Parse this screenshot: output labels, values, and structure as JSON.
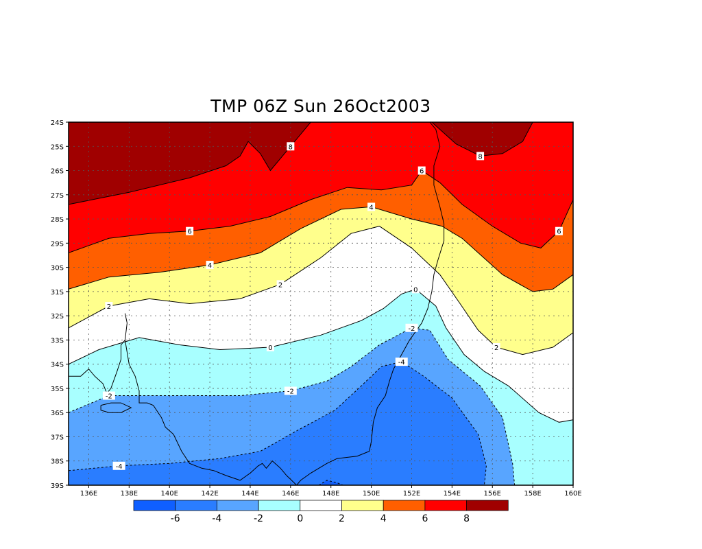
{
  "title": "TMP 06Z Sun 26Oct2003",
  "lat_labels": [
    "24S",
    "25S",
    "26S",
    "27S",
    "28S",
    "29S",
    "30S",
    "31S",
    "32S",
    "33S",
    "34S",
    "35S",
    "36S",
    "37S",
    "38S",
    "39S"
  ],
  "lon_labels": [
    "136E",
    "138E",
    "140E",
    "142E",
    "144E",
    "146E",
    "148E",
    "150E",
    "152E",
    "154E",
    "156E",
    "158E",
    "160E"
  ],
  "contour_labels": [
    "8",
    "8",
    "6",
    "6",
    "6",
    "4",
    "4",
    "2",
    "2",
    "2",
    "0",
    "0",
    "-2",
    "-2",
    "-2",
    "-4",
    "-4"
  ],
  "colorbar": {
    "colors": [
      "#0f5fff",
      "#2a7dff",
      "#58a5ff",
      "#a8ffff",
      "#ffffff",
      "#ffff8c",
      "#ff5f00",
      "#ff0000",
      "#a00000"
    ],
    "labels": [
      "-6",
      "-4",
      "-2",
      "0",
      "2",
      "4",
      "6",
      "8"
    ]
  },
  "chart_data": {
    "type": "heatmap",
    "title": "TMP 06Z Sun 26Oct2003",
    "variable": "TMP",
    "x_range": [
      135,
      160
    ],
    "y_range": [
      -39,
      -24
    ],
    "levels": [
      -6,
      -4,
      -2,
      0,
      2,
      4,
      6,
      8
    ],
    "contours": [
      {
        "level": 8,
        "points": [
          [
            135,
            -27.4
          ],
          [
            138,
            -26.9
          ],
          [
            141,
            -26.3
          ],
          [
            142.8,
            -25.8
          ],
          [
            143.5,
            -25.4
          ],
          [
            143.9,
            -24.8
          ],
          [
            144.5,
            -25.3
          ],
          [
            145,
            -26
          ],
          [
            146,
            -25
          ],
          [
            146.8,
            -24.2
          ],
          [
            147,
            -24
          ]
        ],
        "second_segment": [
          [
            153,
            -24
          ],
          [
            154.2,
            -24.9
          ],
          [
            155.4,
            -25.4
          ],
          [
            156.5,
            -25.3
          ],
          [
            157.5,
            -24.8
          ],
          [
            158,
            -24
          ]
        ]
      },
      {
        "level": 6,
        "points": [
          [
            135,
            -29.4
          ],
          [
            137,
            -28.8
          ],
          [
            139,
            -28.6
          ],
          [
            141,
            -28.5
          ],
          [
            143,
            -28.3
          ],
          [
            145,
            -27.9
          ],
          [
            147,
            -27.2
          ],
          [
            148.8,
            -26.7
          ],
          [
            150.5,
            -26.8
          ],
          [
            152,
            -26.6
          ],
          [
            152.5,
            -26
          ],
          [
            153.4,
            -26.5
          ],
          [
            154.5,
            -27.4
          ],
          [
            156,
            -28.3
          ],
          [
            157.4,
            -29
          ],
          [
            158.4,
            -29.2
          ],
          [
            159.3,
            -28.5
          ],
          [
            160,
            -27.2
          ]
        ]
      },
      {
        "level": 4,
        "points": [
          [
            135,
            -30.9
          ],
          [
            137,
            -30.4
          ],
          [
            139.5,
            -30.2
          ],
          [
            142,
            -29.9
          ],
          [
            144.5,
            -29.4
          ],
          [
            146.5,
            -28.4
          ],
          [
            148.5,
            -27.6
          ],
          [
            150,
            -27.5
          ],
          [
            152,
            -28
          ],
          [
            153.5,
            -28.3
          ],
          [
            154.5,
            -28.8
          ],
          [
            156.5,
            -30.3
          ],
          [
            158,
            -31
          ],
          [
            159,
            -30.9
          ],
          [
            160,
            -30.3
          ]
        ]
      },
      {
        "level": 2,
        "points": [
          [
            135,
            -32.5
          ],
          [
            137,
            -31.6
          ],
          [
            139,
            -31.3
          ],
          [
            141,
            -31.5
          ],
          [
            143.5,
            -31.3
          ],
          [
            145.5,
            -30.7
          ],
          [
            147.5,
            -29.6
          ],
          [
            149,
            -28.6
          ],
          [
            150.4,
            -28.3
          ],
          [
            152,
            -29.2
          ],
          [
            153.4,
            -30.3
          ],
          [
            154.4,
            -31.5
          ],
          [
            155.3,
            -32.6
          ],
          [
            156.2,
            -33.3
          ],
          [
            157.5,
            -33.6
          ],
          [
            159,
            -33.3
          ],
          [
            160,
            -32.7
          ]
        ]
      },
      {
        "level": 0,
        "points": [
          [
            135,
            -34
          ],
          [
            136.5,
            -33.4
          ],
          [
            138.5,
            -32.9
          ],
          [
            140.5,
            -33.2
          ],
          [
            142.5,
            -33.4
          ],
          [
            145,
            -33.3
          ],
          [
            147.5,
            -32.8
          ],
          [
            149.5,
            -32.2
          ],
          [
            150.6,
            -31.7
          ],
          [
            151.5,
            -31.1
          ],
          [
            152.2,
            -30.9
          ],
          [
            153.2,
            -31.6
          ],
          [
            153.7,
            -32.5
          ],
          [
            154.6,
            -33.6
          ],
          [
            155.6,
            -34.3
          ],
          [
            156.8,
            -34.9
          ],
          [
            158.3,
            -36
          ],
          [
            159.3,
            -36.4
          ],
          [
            160,
            -36.3
          ]
        ]
      },
      {
        "level": -2,
        "points": [
          [
            135,
            -36
          ],
          [
            137,
            -35.3
          ],
          [
            139,
            -35.3
          ],
          [
            141,
            -35.3
          ],
          [
            143.5,
            -35.3
          ],
          [
            146,
            -35.1
          ],
          [
            147.8,
            -34.7
          ],
          [
            149,
            -34.1
          ],
          [
            150.4,
            -33.2
          ],
          [
            152,
            -32.5
          ],
          [
            152.9,
            -32.6
          ],
          [
            153.8,
            -33.8
          ],
          [
            155.4,
            -34.9
          ],
          [
            156.5,
            -36.2
          ],
          [
            157,
            -38.1
          ],
          [
            157.1,
            -39
          ]
        ]
      },
      {
        "level": -4,
        "points": [
          [
            135,
            -38.4
          ],
          [
            137.5,
            -38.2
          ],
          [
            140,
            -38.1
          ],
          [
            142.5,
            -37.9
          ],
          [
            144.5,
            -37.6
          ],
          [
            146.2,
            -36.8
          ],
          [
            148.2,
            -35.9
          ],
          [
            149.5,
            -34.9
          ],
          [
            150.5,
            -34.1
          ],
          [
            151.5,
            -33.9
          ],
          [
            152.6,
            -34.5
          ],
          [
            154,
            -35.4
          ],
          [
            155.3,
            -36.9
          ],
          [
            155.7,
            -38.2
          ],
          [
            155.6,
            -39
          ]
        ]
      },
      {
        "level": -6,
        "points": [
          [
            147.4,
            -39
          ],
          [
            147.8,
            -38.8
          ],
          [
            148.3,
            -38.9
          ],
          [
            148.6,
            -39
          ]
        ]
      }
    ]
  }
}
